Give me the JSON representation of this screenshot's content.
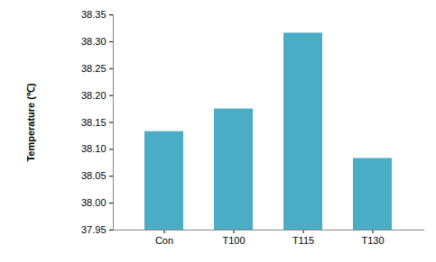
{
  "chart_data": {
    "type": "bar",
    "y_label": "Temperature (℃)",
    "categories": [
      "Con",
      "T100",
      "T115",
      "T130"
    ],
    "values": [
      38.133,
      38.175,
      38.316,
      38.083
    ],
    "color": "#4bacc6",
    "ylim": [
      37.95,
      38.35
    ],
    "yticks": [
      37.95,
      {
        "value": 38.0,
        "label": "38.00"
      },
      38.05,
      {
        "value": 38.1,
        "label": "38.10"
      },
      38.15,
      {
        "value": 38.2,
        "label": "38.20"
      },
      38.25,
      {
        "value": 38.3,
        "label": "38.30"
      },
      38.35
    ],
    "grid": false
  }
}
